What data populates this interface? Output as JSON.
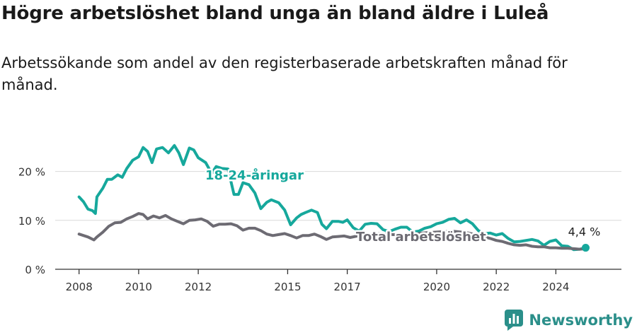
{
  "header": {
    "title": "Högre arbetslöshet bland unga än bland äldre i Luleå",
    "subtitle": "Arbetssökande som andel av den registerbaserade arbetskraften månad för månad."
  },
  "brand": {
    "name": "Newsworthy",
    "icon": "newsworthy-logo-icon",
    "color": "#2b8f8a"
  },
  "chart_data": {
    "type": "line",
    "xlim": [
      2007.2,
      2026.2
    ],
    "ylim": [
      0,
      25
    ],
    "y_ticks": [
      0,
      10,
      20
    ],
    "y_tick_labels": [
      "0 %",
      "10 %",
      "20 %"
    ],
    "x_ticks": [
      2008,
      2010,
      2012,
      2015,
      2017,
      2020,
      2022,
      2024
    ],
    "x_tick_labels": [
      "2008",
      "2010",
      "2012",
      "2015",
      "2017",
      "2020",
      "2022",
      "2024"
    ],
    "grid": true,
    "legend": "none",
    "end_label": "4,4 %",
    "series": [
      {
        "name": "18-24-åringar",
        "color": "#16a89c",
        "x": [
          2008.0,
          2008.15,
          2008.3,
          2008.45,
          2008.55,
          2008.6,
          2008.8,
          2008.95,
          2009.1,
          2009.3,
          2009.45,
          2009.6,
          2009.8,
          2010.0,
          2010.15,
          2010.3,
          2010.45,
          2010.6,
          2010.8,
          2011.0,
          2011.2,
          2011.35,
          2011.5,
          2011.7,
          2011.85,
          2012.0,
          2012.25,
          2012.45,
          2012.6,
          2012.8,
          2013.0,
          2013.2,
          2013.35,
          2013.5,
          2013.7,
          2013.9,
          2014.1,
          2014.3,
          2014.45,
          2014.7,
          2014.9,
          2015.1,
          2015.3,
          2015.45,
          2015.6,
          2015.8,
          2016.0,
          2016.15,
          2016.3,
          2016.5,
          2016.7,
          2016.85,
          2017.0,
          2017.2,
          2017.4,
          2017.6,
          2017.8,
          2018.0,
          2018.2,
          2018.4,
          2018.6,
          2018.8,
          2019.0,
          2019.2,
          2019.4,
          2019.6,
          2019.8,
          2020.0,
          2020.2,
          2020.4,
          2020.6,
          2020.8,
          2021.0,
          2021.2,
          2021.4,
          2021.6,
          2021.8,
          2022.0,
          2022.2,
          2022.4,
          2022.6,
          2022.8,
          2023.0,
          2023.2,
          2023.4,
          2023.6,
          2023.8,
          2024.0,
          2024.2,
          2024.4,
          2024.6,
          2024.8,
          2025.0
        ],
        "values": [
          14.8,
          13.8,
          12.3,
          12.0,
          11.4,
          14.8,
          16.6,
          18.4,
          18.4,
          19.3,
          18.8,
          20.6,
          22.3,
          23.0,
          24.9,
          24.1,
          21.8,
          24.6,
          24.9,
          23.8,
          25.3,
          23.8,
          21.4,
          24.8,
          24.4,
          22.8,
          21.8,
          19.6,
          21.0,
          20.6,
          20.5,
          15.3,
          15.3,
          17.7,
          17.3,
          15.6,
          12.4,
          13.7,
          14.2,
          13.6,
          12.1,
          9.1,
          10.5,
          11.2,
          11.6,
          12.1,
          11.6,
          9.2,
          8.3,
          9.8,
          9.8,
          9.6,
          10.1,
          8.5,
          7.8,
          9.2,
          9.4,
          9.3,
          8.1,
          7.7,
          8.2,
          8.6,
          8.6,
          7.6,
          7.8,
          8.4,
          8.7,
          9.3,
          9.6,
          10.2,
          10.4,
          9.5,
          10.1,
          9.3,
          7.9,
          7.3,
          7.4,
          7.0,
          7.3,
          6.3,
          5.6,
          5.7,
          5.9,
          6.1,
          5.8,
          4.9,
          5.7,
          6.0,
          4.8,
          4.7,
          4.0,
          4.1,
          4.4
        ]
      },
      {
        "name": "Total arbetslöshet",
        "color": "#6d6b73",
        "x": [
          2008.0,
          2008.3,
          2008.5,
          2008.6,
          2008.8,
          2009.0,
          2009.2,
          2009.4,
          2009.6,
          2009.8,
          2010.0,
          2010.15,
          2010.3,
          2010.5,
          2010.7,
          2010.9,
          2011.1,
          2011.3,
          2011.5,
          2011.7,
          2011.9,
          2012.1,
          2012.3,
          2012.5,
          2012.7,
          2012.9,
          2013.1,
          2013.3,
          2013.5,
          2013.7,
          2013.9,
          2014.1,
          2014.3,
          2014.5,
          2014.7,
          2014.9,
          2015.1,
          2015.3,
          2015.5,
          2015.7,
          2015.9,
          2016.1,
          2016.3,
          2016.5,
          2016.7,
          2016.9,
          2017.1,
          2017.5,
          2018.0,
          2018.5,
          2019.0,
          2019.5,
          2020.0,
          2020.5,
          2021.0,
          2021.5,
          2021.8,
          2022.0,
          2022.2,
          2022.4,
          2022.6,
          2022.8,
          2023.0,
          2023.2,
          2023.4,
          2023.6,
          2023.8,
          2024.0,
          2024.2,
          2024.4,
          2024.6,
          2024.8,
          2025.0
        ],
        "values": [
          7.2,
          6.6,
          6.0,
          6.6,
          7.6,
          8.8,
          9.5,
          9.6,
          10.3,
          10.8,
          11.4,
          11.2,
          10.3,
          10.9,
          10.5,
          11.0,
          10.3,
          9.8,
          9.3,
          10.0,
          10.1,
          10.3,
          9.8,
          8.8,
          9.2,
          9.2,
          9.3,
          8.9,
          8.0,
          8.4,
          8.4,
          7.9,
          7.2,
          6.9,
          7.1,
          7.3,
          6.9,
          6.4,
          6.9,
          6.9,
          7.2,
          6.7,
          6.1,
          6.6,
          6.7,
          6.8,
          6.5,
          7.0,
          7.3,
          7.1,
          7.0,
          7.4,
          7.6,
          7.8,
          7.5,
          6.8,
          6.3,
          5.9,
          5.7,
          5.3,
          5.0,
          4.9,
          5.0,
          4.7,
          4.6,
          4.6,
          4.4,
          4.4,
          4.3,
          4.3,
          4.2,
          4.1,
          4.2
        ]
      }
    ]
  }
}
